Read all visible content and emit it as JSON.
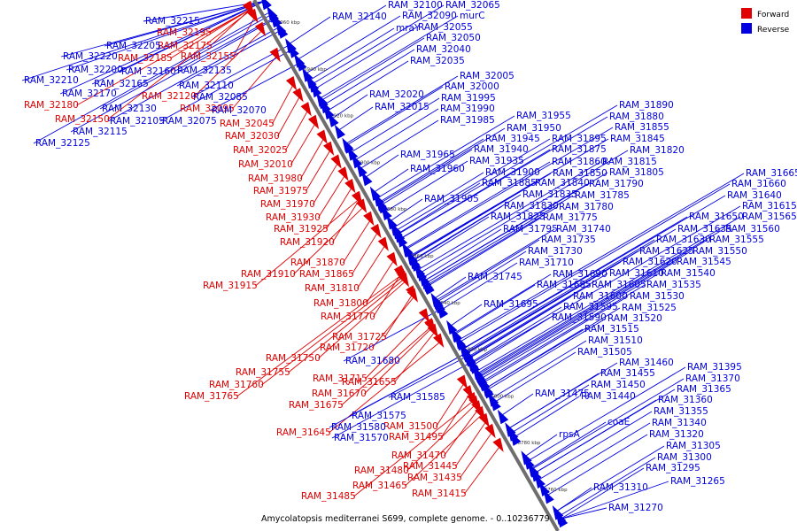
{
  "caption": "Amycolatopsis mediterranei S699, complete genome. - 0..10236779",
  "legend": [
    {
      "label": "Forward",
      "color": "#e00000"
    },
    {
      "label": "Reverse",
      "color": "#0000e0"
    }
  ],
  "ticks": [
    "6960 kbp",
    "6940 kbp",
    "6920 kbp",
    "6900 kbp",
    "6880 kbp",
    "6860 kbp",
    "6840 kbp",
    "6820 kbp",
    "6800 kbp",
    "6780 kbp",
    "6760 kbp"
  ],
  "colors": {
    "forward": "#e00000",
    "reverse": "#0000e0",
    "spine": "#6e6e6e"
  },
  "genes": [
    {
      "name": "RAM_32215",
      "strand": "reverse"
    },
    {
      "name": "RAM_32195",
      "strand": "forward"
    },
    {
      "name": "RAM_32175",
      "strand": "forward"
    },
    {
      "name": "RAM_32205",
      "strand": "reverse"
    },
    {
      "name": "RAM_32220",
      "strand": "reverse"
    },
    {
      "name": "RAM_32185",
      "strand": "forward"
    },
    {
      "name": "RAM_32155",
      "strand": "forward"
    },
    {
      "name": "RAM_32200",
      "strand": "reverse"
    },
    {
      "name": "RAM_32160",
      "strand": "reverse"
    },
    {
      "name": "RAM_32135",
      "strand": "reverse"
    },
    {
      "name": "RAM_32210",
      "strand": "reverse"
    },
    {
      "name": "RAM_32165",
      "strand": "reverse"
    },
    {
      "name": "RAM_32110",
      "strand": "reverse"
    },
    {
      "name": "RAM_32170",
      "strand": "reverse"
    },
    {
      "name": "RAM_32085",
      "strand": "reverse"
    },
    {
      "name": "RAM_32180",
      "strand": "forward"
    },
    {
      "name": "RAM_32130",
      "strand": "reverse"
    },
    {
      "name": "RAM_32120",
      "strand": "forward"
    },
    {
      "name": "RAM_32095",
      "strand": "forward"
    },
    {
      "name": "RAM_32070",
      "strand": "reverse"
    },
    {
      "name": "RAM_32150",
      "strand": "forward"
    },
    {
      "name": "RAM_32105",
      "strand": "reverse"
    },
    {
      "name": "RAM_32075",
      "strand": "reverse"
    },
    {
      "name": "RAM_32045",
      "strand": "forward"
    },
    {
      "name": "RAM_32115",
      "strand": "reverse"
    },
    {
      "name": "RAM_32030",
      "strand": "forward"
    },
    {
      "name": "RAM_32125",
      "strand": "reverse"
    },
    {
      "name": "RAM_32025",
      "strand": "forward"
    },
    {
      "name": "RAM_32010",
      "strand": "forward"
    },
    {
      "name": "RAM_31980",
      "strand": "forward"
    },
    {
      "name": "RAM_31975",
      "strand": "forward"
    },
    {
      "name": "RAM_31970",
      "strand": "forward"
    },
    {
      "name": "RAM_31930",
      "strand": "forward"
    },
    {
      "name": "RAM_31925",
      "strand": "forward"
    },
    {
      "name": "RAM_31920",
      "strand": "forward"
    },
    {
      "name": "RAM_31870",
      "strand": "forward"
    },
    {
      "name": "RAM_31910",
      "strand": "forward"
    },
    {
      "name": "RAM_31865",
      "strand": "forward"
    },
    {
      "name": "RAM_31915",
      "strand": "forward"
    },
    {
      "name": "RAM_31810",
      "strand": "forward"
    },
    {
      "name": "RAM_31800",
      "strand": "forward"
    },
    {
      "name": "RAM_31770",
      "strand": "forward"
    },
    {
      "name": "RAM_31725",
      "strand": "forward"
    },
    {
      "name": "RAM_31720",
      "strand": "forward"
    },
    {
      "name": "RAM_31750",
      "strand": "forward"
    },
    {
      "name": "RAM_31755",
      "strand": "forward"
    },
    {
      "name": "RAM_31715",
      "strand": "forward"
    },
    {
      "name": "RAM_31655",
      "strand": "forward"
    },
    {
      "name": "RAM_31760",
      "strand": "forward"
    },
    {
      "name": "RAM_31670",
      "strand": "forward"
    },
    {
      "name": "RAM_31765",
      "strand": "forward"
    },
    {
      "name": "RAM_31675",
      "strand": "forward"
    },
    {
      "name": "RAM_31645",
      "strand": "forward"
    },
    {
      "name": "RAM_31500",
      "strand": "forward"
    },
    {
      "name": "RAM_31495",
      "strand": "forward"
    },
    {
      "name": "RAM_31470",
      "strand": "forward"
    },
    {
      "name": "RAM_31480",
      "strand": "forward"
    },
    {
      "name": "RAM_31445",
      "strand": "forward"
    },
    {
      "name": "RAM_31435",
      "strand": "forward"
    },
    {
      "name": "RAM_31465",
      "strand": "forward"
    },
    {
      "name": "RAM_31415",
      "strand": "forward"
    },
    {
      "name": "RAM_31485",
      "strand": "forward"
    },
    {
      "name": "RAM_31680",
      "strand": "reverse"
    },
    {
      "name": "RAM_31585",
      "strand": "reverse"
    },
    {
      "name": "RAM_31575",
      "strand": "reverse"
    },
    {
      "name": "RAM_31580",
      "strand": "reverse"
    },
    {
      "name": "RAM_31570",
      "strand": "reverse"
    },
    {
      "name": "RAM_32140",
      "strand": "reverse"
    },
    {
      "name": "RAM_32100",
      "strand": "reverse"
    },
    {
      "name": "RAM_32065",
      "strand": "reverse"
    },
    {
      "name": "RAM_32090",
      "strand": "reverse"
    },
    {
      "name": "murC",
      "strand": "reverse"
    },
    {
      "name": "mraY",
      "strand": "reverse"
    },
    {
      "name": "RAM_32055",
      "strand": "reverse"
    },
    {
      "name": "RAM_32050",
      "strand": "reverse"
    },
    {
      "name": "RAM_32040",
      "strand": "reverse"
    },
    {
      "name": "RAM_32035",
      "strand": "reverse"
    },
    {
      "name": "RAM_32005",
      "strand": "reverse"
    },
    {
      "name": "RAM_32000",
      "strand": "reverse"
    },
    {
      "name": "RAM_32020",
      "strand": "reverse"
    },
    {
      "name": "RAM_31995",
      "strand": "reverse"
    },
    {
      "name": "RAM_32015",
      "strand": "reverse"
    },
    {
      "name": "RAM_31990",
      "strand": "reverse"
    },
    {
      "name": "RAM_31985",
      "strand": "reverse"
    },
    {
      "name": "RAM_31955",
      "strand": "reverse"
    },
    {
      "name": "RAM_31890",
      "strand": "reverse"
    },
    {
      "name": "RAM_31880",
      "strand": "reverse"
    },
    {
      "name": "RAM_31950",
      "strand": "reverse"
    },
    {
      "name": "RAM_31855",
      "strand": "reverse"
    },
    {
      "name": "RAM_31945",
      "strand": "reverse"
    },
    {
      "name": "RAM_31895",
      "strand": "reverse"
    },
    {
      "name": "RAM_31845",
      "strand": "reverse"
    },
    {
      "name": "RAM_31965",
      "strand": "reverse"
    },
    {
      "name": "RAM_31940",
      "strand": "reverse"
    },
    {
      "name": "RAM_31875",
      "strand": "reverse"
    },
    {
      "name": "RAM_31820",
      "strand": "reverse"
    },
    {
      "name": "RAM_31935",
      "strand": "reverse"
    },
    {
      "name": "RAM_31860",
      "strand": "reverse"
    },
    {
      "name": "RAM_31815",
      "strand": "reverse"
    },
    {
      "name": "RAM_31960",
      "strand": "reverse"
    },
    {
      "name": "RAM_31900",
      "strand": "reverse"
    },
    {
      "name": "RAM_31850",
      "strand": "reverse"
    },
    {
      "name": "RAM_31805",
      "strand": "reverse"
    },
    {
      "name": "RAM_31885",
      "strand": "reverse"
    },
    {
      "name": "RAM_31840",
      "strand": "reverse"
    },
    {
      "name": "RAM_31790",
      "strand": "reverse"
    },
    {
      "name": "RAM_31905",
      "strand": "reverse"
    },
    {
      "name": "RAM_31835",
      "strand": "reverse"
    },
    {
      "name": "RAM_31785",
      "strand": "reverse"
    },
    {
      "name": "RAM_31830",
      "strand": "reverse"
    },
    {
      "name": "RAM_31780",
      "strand": "reverse"
    },
    {
      "name": "RAM_31825",
      "strand": "reverse"
    },
    {
      "name": "RAM_31775",
      "strand": "reverse"
    },
    {
      "name": "RAM_31795",
      "strand": "reverse"
    },
    {
      "name": "RAM_31740",
      "strand": "reverse"
    },
    {
      "name": "RAM_31735",
      "strand": "reverse"
    },
    {
      "name": "RAM_31730",
      "strand": "reverse"
    },
    {
      "name": "RAM_31710",
      "strand": "reverse"
    },
    {
      "name": "RAM_31745",
      "strand": "reverse"
    },
    {
      "name": "RAM_31690",
      "strand": "reverse"
    },
    {
      "name": "RAM_31685",
      "strand": "reverse"
    },
    {
      "name": "RAM_31605",
      "strand": "reverse"
    },
    {
      "name": "RAM_31600",
      "strand": "reverse"
    },
    {
      "name": "RAM_31695",
      "strand": "reverse"
    },
    {
      "name": "RAM_31595",
      "strand": "reverse"
    },
    {
      "name": "RAM_31590",
      "strand": "reverse"
    },
    {
      "name": "RAM_31515",
      "strand": "reverse"
    },
    {
      "name": "RAM_31510",
      "strand": "reverse"
    },
    {
      "name": "RAM_31505",
      "strand": "reverse"
    },
    {
      "name": "RAM_31665",
      "strand": "reverse"
    },
    {
      "name": "RAM_31660",
      "strand": "reverse"
    },
    {
      "name": "RAM_31640",
      "strand": "reverse"
    },
    {
      "name": "RAM_31615",
      "strand": "reverse"
    },
    {
      "name": "RAM_31650",
      "strand": "reverse"
    },
    {
      "name": "RAM_31565",
      "strand": "reverse"
    },
    {
      "name": "RAM_31635",
      "strand": "reverse"
    },
    {
      "name": "RAM_31560",
      "strand": "reverse"
    },
    {
      "name": "RAM_31630",
      "strand": "reverse"
    },
    {
      "name": "RAM_31555",
      "strand": "reverse"
    },
    {
      "name": "RAM_31625",
      "strand": "reverse"
    },
    {
      "name": "RAM_31550",
      "strand": "reverse"
    },
    {
      "name": "RAM_31620",
      "strand": "reverse"
    },
    {
      "name": "RAM_31545",
      "strand": "reverse"
    },
    {
      "name": "RAM_31610",
      "strand": "reverse"
    },
    {
      "name": "RAM_31540",
      "strand": "reverse"
    },
    {
      "name": "RAM_31535",
      "strand": "reverse"
    },
    {
      "name": "RAM_31530",
      "strand": "reverse"
    },
    {
      "name": "RAM_31525",
      "strand": "reverse"
    },
    {
      "name": "RAM_31520",
      "strand": "reverse"
    },
    {
      "name": "RAM_31460",
      "strand": "reverse"
    },
    {
      "name": "RAM_31455",
      "strand": "reverse"
    },
    {
      "name": "RAM_31475",
      "strand": "reverse"
    },
    {
      "name": "RAM_31450",
      "strand": "reverse"
    },
    {
      "name": "RAM_31440",
      "strand": "reverse"
    },
    {
      "name": "RAM_31395",
      "strand": "reverse"
    },
    {
      "name": "RAM_31370",
      "strand": "reverse"
    },
    {
      "name": "RAM_31365",
      "strand": "reverse"
    },
    {
      "name": "RAM_31360",
      "strand": "reverse"
    },
    {
      "name": "RAM_31355",
      "strand": "reverse"
    },
    {
      "name": "coaE",
      "strand": "reverse"
    },
    {
      "name": "RAM_31340",
      "strand": "reverse"
    },
    {
      "name": "rpsA",
      "strand": "reverse"
    },
    {
      "name": "RAM_31320",
      "strand": "reverse"
    },
    {
      "name": "RAM_31305",
      "strand": "reverse"
    },
    {
      "name": "RAM_31300",
      "strand": "reverse"
    },
    {
      "name": "RAM_31295",
      "strand": "reverse"
    },
    {
      "name": "RAM_31265",
      "strand": "reverse"
    },
    {
      "name": "RAM_31310",
      "strand": "reverse"
    },
    {
      "name": "RAM_31270",
      "strand": "reverse"
    }
  ]
}
